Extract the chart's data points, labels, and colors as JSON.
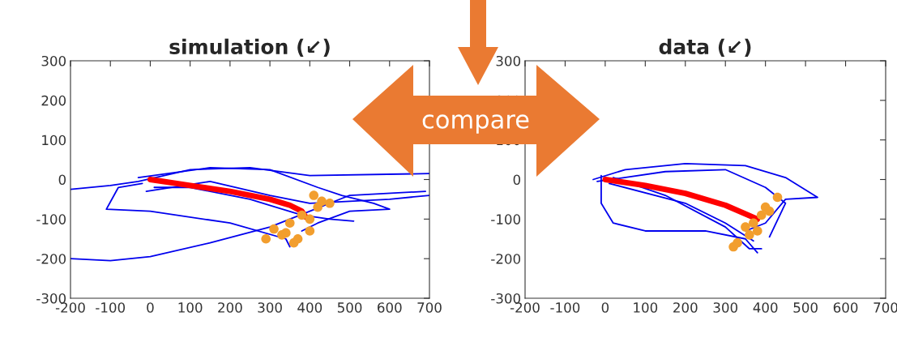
{
  "chart_data": [
    {
      "type": "line",
      "title": "simulation (↙)",
      "xlim": [
        -200,
        700
      ],
      "ylim": [
        -300,
        300
      ],
      "xticks": [
        -200,
        -100,
        0,
        100,
        200,
        300,
        400,
        500,
        600,
        700
      ],
      "yticks": [
        -300,
        -200,
        -100,
        0,
        100,
        200,
        300
      ],
      "grid": false,
      "annotations": [
        "compare"
      ],
      "series": [
        {
          "color": "#0000ee",
          "x": [
            -200,
            -100,
            -30,
            100,
            250,
            400,
            700
          ],
          "values": [
            -25,
            -15,
            -5,
            25,
            30,
            10,
            15
          ]
        },
        {
          "color": "#0000ee",
          "x": [
            -200,
            -100,
            0,
            150,
            300,
            400,
            500,
            690
          ],
          "values": [
            -200,
            -205,
            -195,
            -160,
            -120,
            -80,
            -40,
            -30
          ]
        },
        {
          "color": "#0000ee",
          "x": [
            -20,
            -80,
            -110,
            0,
            200,
            340,
            350
          ],
          "values": [
            -10,
            -20,
            -75,
            -80,
            -110,
            -150,
            -170
          ]
        },
        {
          "color": "#0000ee",
          "x": [
            -30,
            150,
            300,
            420,
            480,
            560,
            600,
            500,
            420,
            380
          ],
          "values": [
            5,
            30,
            25,
            -20,
            -40,
            -60,
            -75,
            -80,
            -110,
            -130
          ]
        },
        {
          "color": "#0000ee",
          "x": [
            10,
            100,
            250,
            380,
            450,
            510
          ],
          "values": [
            -20,
            -20,
            -50,
            -90,
            -100,
            -105
          ]
        },
        {
          "color": "#0000ee",
          "x": [
            -10,
            150,
            300,
            400,
            600,
            700
          ],
          "values": [
            -30,
            -5,
            -40,
            -60,
            -50,
            -40
          ]
        },
        {
          "color": "#ff0000",
          "x": [
            0,
            100,
            200,
            300,
            350,
            380,
            390
          ],
          "values": [
            0,
            -15,
            -30,
            -50,
            -65,
            -80,
            -95
          ]
        },
        {
          "type": "scatter",
          "color": "#f29e2e",
          "x": [
            290,
            310,
            330,
            350,
            360,
            380,
            400,
            420,
            430,
            450,
            400,
            370,
            340,
            410
          ],
          "values": [
            -150,
            -125,
            -140,
            -110,
            -160,
            -90,
            -100,
            -70,
            -55,
            -60,
            -130,
            -150,
            -135,
            -40
          ]
        }
      ]
    },
    {
      "type": "line",
      "title": "data (↙)",
      "xlim": [
        -200,
        700
      ],
      "ylim": [
        -300,
        300
      ],
      "xticks": [
        -200,
        -100,
        0,
        100,
        200,
        300,
        400,
        500,
        600,
        700
      ],
      "yticks": [
        -300,
        -200,
        -100,
        0,
        100,
        200,
        300
      ],
      "grid": false,
      "series": [
        {
          "color": "#0000ee",
          "x": [
            -30,
            50,
            200,
            350,
            450,
            530,
            450,
            400,
            350
          ],
          "values": [
            0,
            25,
            40,
            35,
            5,
            -45,
            -50,
            -110,
            -130
          ]
        },
        {
          "color": "#0000ee",
          "x": [
            -10,
            -10,
            20,
            100,
            250,
            350,
            380
          ],
          "values": [
            10,
            -60,
            -110,
            -130,
            -130,
            -150,
            -185
          ]
        },
        {
          "color": "#0000ee",
          "x": [
            10,
            200,
            300,
            370
          ],
          "values": [
            -10,
            -60,
            -110,
            -155
          ]
        },
        {
          "color": "#0000ee",
          "x": [
            -20,
            150,
            300,
            400,
            450,
            410
          ],
          "values": [
            -5,
            20,
            25,
            -20,
            -60,
            -145
          ]
        },
        {
          "color": "#0000ee",
          "x": [
            20,
            150,
            300,
            360,
            390
          ],
          "values": [
            5,
            -40,
            -120,
            -175,
            -175
          ]
        },
        {
          "color": "#ff0000",
          "x": [
            0,
            100,
            200,
            300,
            380
          ],
          "values": [
            0,
            -15,
            -35,
            -65,
            -100
          ]
        },
        {
          "type": "scatter",
          "color": "#f29e2e",
          "x": [
            320,
            330,
            350,
            370,
            390,
            400,
            410,
            430,
            360,
            380
          ],
          "values": [
            -170,
            -160,
            -120,
            -110,
            -90,
            -70,
            -80,
            -45,
            -140,
            -130
          ]
        }
      ]
    }
  ]
}
